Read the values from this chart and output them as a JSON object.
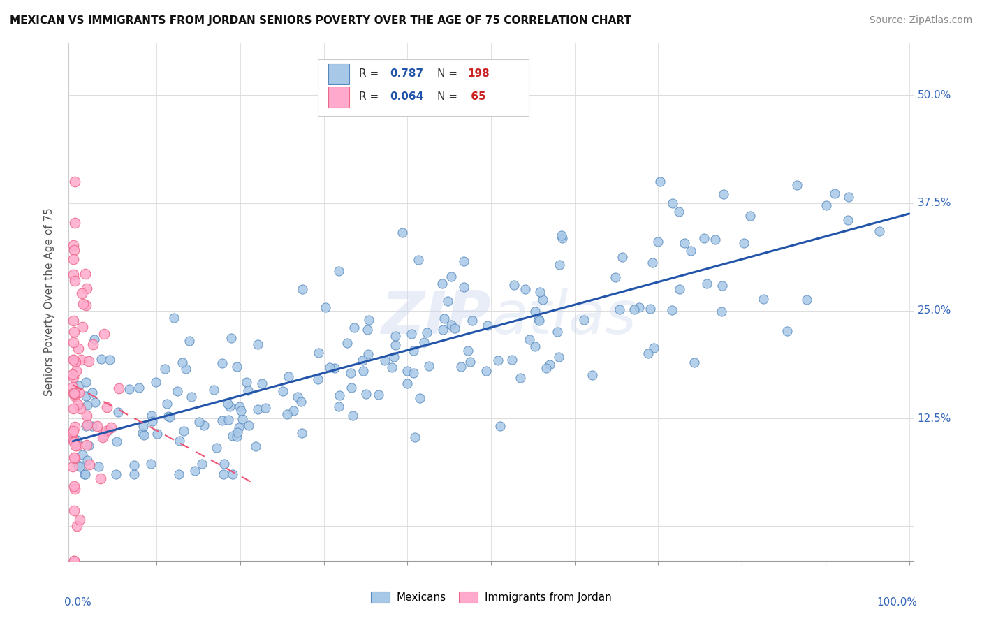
{
  "title": "MEXICAN VS IMMIGRANTS FROM JORDAN SENIORS POVERTY OVER THE AGE OF 75 CORRELATION CHART",
  "source_text": "Source: ZipAtlas.com",
  "ylabel": "Seniors Poverty Over the Age of 75",
  "mexicans_color": "#a8c8e8",
  "mexicans_edge": "#5588bb",
  "jordan_color": "#ffaacc",
  "jordan_edge": "#ee6688",
  "trend_mexican_color": "#2255aa",
  "trend_jordan_color": "#ee5577",
  "watermark": "ZIPatlas",
  "R_mexican": 0.787,
  "N_mexican": 198,
  "R_jordan": 0.064,
  "N_jordan": 65,
  "legend_R_color": "#2255aa",
  "legend_N_color": "#cc2222",
  "xlim": [
    -0.005,
    1.005
  ],
  "ylim": [
    -0.04,
    0.56
  ],
  "yticks": [
    0.0,
    0.125,
    0.25,
    0.375,
    0.5
  ],
  "ytick_labels": [
    "",
    "12.5%",
    "25.0%",
    "37.5%",
    "50.0%"
  ],
  "xtick_left_label": "0.0%",
  "xtick_right_label": "100.0%",
  "grid_color": "#dddddd",
  "title_fontsize": 11,
  "axis_label_color": "#3366bb",
  "ylabel_color": "#555555"
}
